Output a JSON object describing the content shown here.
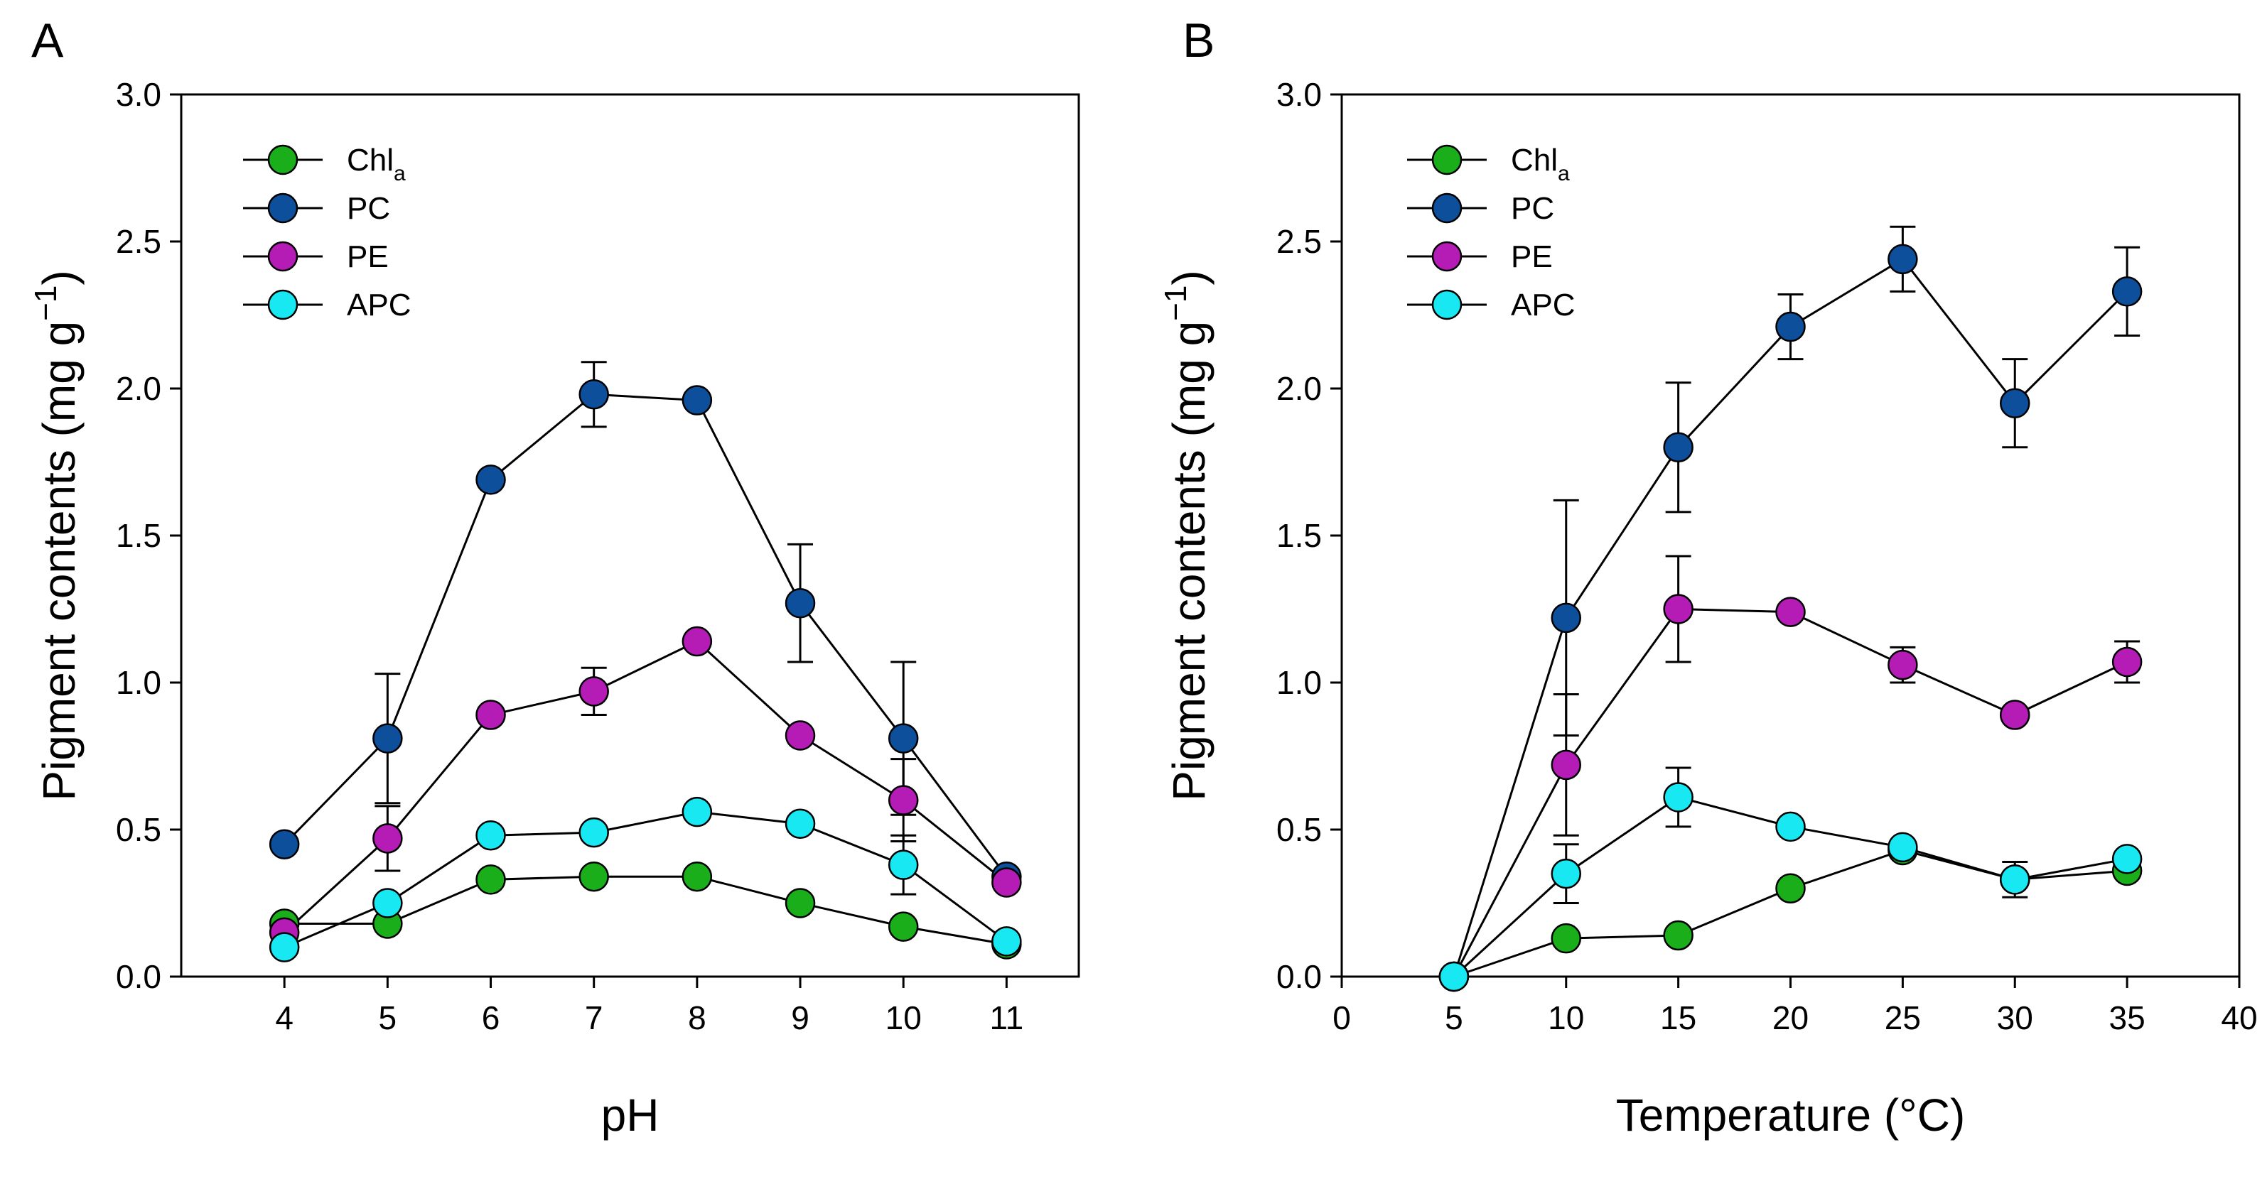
{
  "colors": {
    "Chla": "#1aae1a",
    "PC": "#0d4f9a",
    "PE": "#b51bb5",
    "APC": "#18e8f2"
  },
  "chart_data": [
    {
      "panel": "A",
      "type": "line",
      "xlabel": "pH",
      "ylabel": "Pigment contents (mg g⁻¹)",
      "ylabel_main": "Pigment contents (mg g",
      "ylabel_sup": "−1",
      "ylabel_close": ")",
      "xlim": [
        3,
        11.7
      ],
      "ylim": [
        0,
        3.0
      ],
      "xticks": [
        4,
        5,
        6,
        7,
        8,
        9,
        10,
        11
      ],
      "xtick_labels": [
        "4",
        "5",
        "6",
        "7",
        "8",
        "9",
        "10",
        "11"
      ],
      "yticks": [
        0,
        0.5,
        1.0,
        1.5,
        2.0,
        2.5,
        3.0
      ],
      "ytick_labels": [
        "0.0",
        "0.5",
        "1.0",
        "1.5",
        "2.0",
        "2.5",
        "3.0"
      ],
      "legend_position": "top-left",
      "x": [
        4,
        5,
        6,
        7,
        8,
        9,
        10,
        11
      ],
      "series": [
        {
          "key": "Chla",
          "name": "Chl",
          "sub": "a",
          "values": [
            0.18,
            0.18,
            0.33,
            0.34,
            0.34,
            0.25,
            0.17,
            0.11
          ],
          "errors": [
            0.02,
            0.02,
            0.02,
            0.02,
            0.02,
            0.02,
            0.02,
            0.02
          ]
        },
        {
          "key": "PC",
          "name": "PC",
          "sub": "",
          "values": [
            0.45,
            0.81,
            1.69,
            1.98,
            1.96,
            1.27,
            0.81,
            0.34
          ],
          "errors": [
            0.02,
            0.22,
            0.02,
            0.11,
            0.02,
            0.2,
            0.26,
            0.02
          ]
        },
        {
          "key": "PE",
          "name": "PE",
          "sub": "",
          "values": [
            0.15,
            0.47,
            0.89,
            0.97,
            1.14,
            0.82,
            0.6,
            0.32
          ],
          "errors": [
            0.02,
            0.11,
            0.02,
            0.08,
            0.02,
            0.02,
            0.14,
            0.02
          ]
        },
        {
          "key": "APC",
          "name": "APC",
          "sub": "",
          "values": [
            0.1,
            0.25,
            0.48,
            0.49,
            0.56,
            0.52,
            0.38,
            0.12
          ],
          "errors": [
            0.02,
            0.02,
            0.02,
            0.02,
            0.02,
            0.02,
            0.1,
            0.02
          ]
        }
      ]
    },
    {
      "panel": "B",
      "type": "line",
      "xlabel": "Temperature (°C)",
      "ylabel": "Pigment contents (mg g⁻¹)",
      "ylabel_main": "Pigment contents (mg g",
      "ylabel_sup": "−1",
      "ylabel_close": ")",
      "xlim": [
        0,
        40
      ],
      "ylim": [
        0,
        3.0
      ],
      "xticks": [
        0,
        5,
        10,
        15,
        20,
        25,
        30,
        35,
        40
      ],
      "xtick_labels": [
        "0",
        "5",
        "10",
        "15",
        "20",
        "25",
        "30",
        "35",
        "40"
      ],
      "yticks": [
        0,
        0.5,
        1.0,
        1.5,
        2.0,
        2.5,
        3.0
      ],
      "ytick_labels": [
        "0.0",
        "0.5",
        "1.0",
        "1.5",
        "2.0",
        "2.5",
        "3.0"
      ],
      "legend_position": "top-left",
      "x": [
        5,
        10,
        15,
        20,
        25,
        30,
        35
      ],
      "series": [
        {
          "key": "Chla",
          "name": "Chl",
          "sub": "a",
          "values": [
            0.0,
            0.13,
            0.14,
            0.3,
            0.43,
            0.33,
            0.36
          ],
          "errors": [
            0.0,
            0.02,
            0.02,
            0.02,
            0.02,
            0.02,
            0.02
          ]
        },
        {
          "key": "PC",
          "name": "PC",
          "sub": "",
          "values": [
            0.0,
            1.22,
            1.8,
            2.21,
            2.44,
            1.95,
            2.33
          ],
          "errors": [
            0.0,
            0.4,
            0.22,
            0.11,
            0.11,
            0.15,
            0.15
          ]
        },
        {
          "key": "PE",
          "name": "PE",
          "sub": "",
          "values": [
            0.0,
            0.72,
            1.25,
            1.24,
            1.06,
            0.89,
            1.07
          ],
          "errors": [
            0.0,
            0.24,
            0.18,
            0.03,
            0.06,
            0.02,
            0.07
          ]
        },
        {
          "key": "APC",
          "name": "APC",
          "sub": "",
          "values": [
            0.0,
            0.35,
            0.61,
            0.51,
            0.44,
            0.33,
            0.4
          ],
          "errors": [
            0.0,
            0.1,
            0.1,
            0.02,
            0.02,
            0.06,
            0.02
          ]
        }
      ]
    }
  ]
}
